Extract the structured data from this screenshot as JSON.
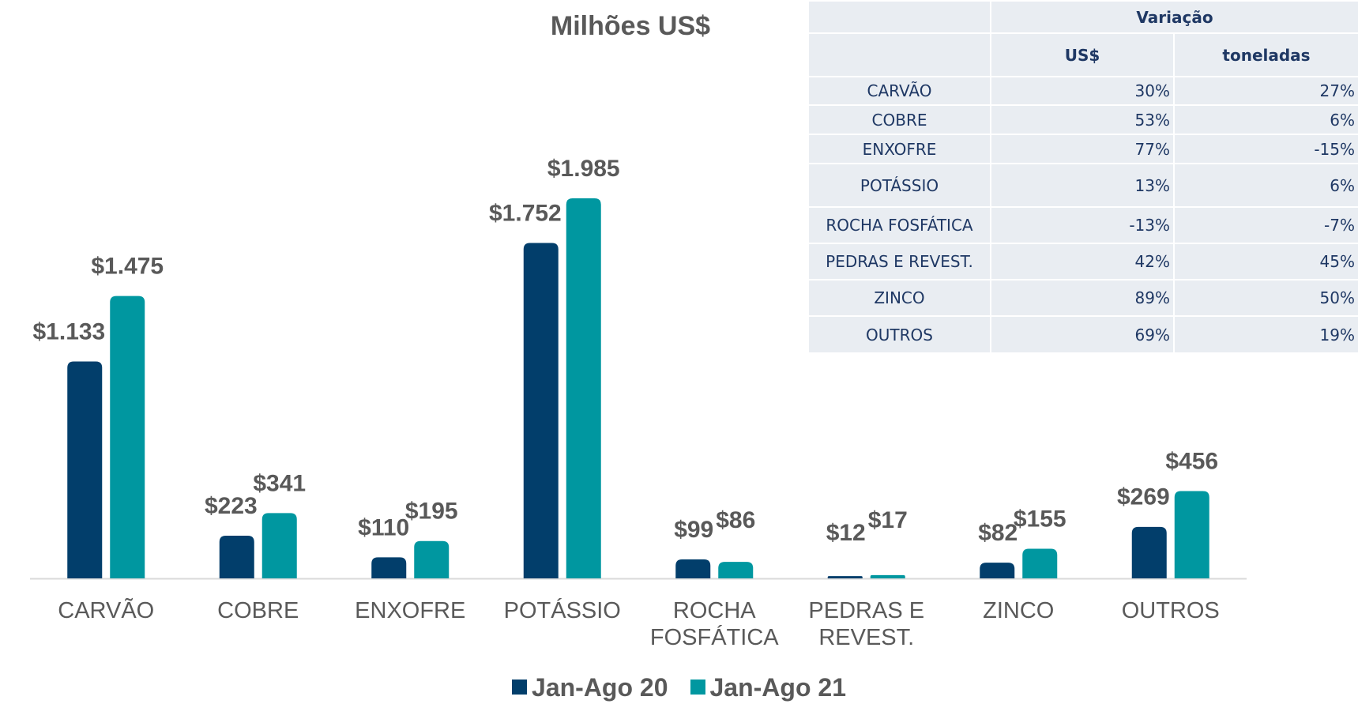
{
  "chart_data": {
    "type": "bar",
    "title": "Milhões US$",
    "categories": [
      "CARVÃO",
      "COBRE",
      "ENXOFRE",
      "POTÁSSIO",
      "ROCHA FOSFÁTICA",
      "PEDRAS E REVEST.",
      "ZINCO",
      "OUTROS"
    ],
    "series": [
      {
        "name": "Jan-Ago 20",
        "color": "#023e6b",
        "values": [
          1133,
          223,
          110,
          1752,
          99,
          12,
          82,
          269
        ],
        "value_labels": [
          "$1.133",
          "$223",
          "$110",
          "$1.752",
          "$99",
          "$12",
          "$82",
          "$269"
        ]
      },
      {
        "name": "Jan-Ago 21",
        "color": "#0097a0",
        "values": [
          1475,
          341,
          195,
          1985,
          86,
          17,
          155,
          456
        ],
        "value_labels": [
          "$1.475",
          "$341",
          "$195",
          "$1.985",
          "$86",
          "$17",
          "$155",
          "$456"
        ]
      }
    ],
    "legend": "bottom"
  },
  "table": {
    "header": "Variação",
    "columns": [
      "US$",
      "toneladas"
    ],
    "rows": [
      [
        "CARVÃO",
        "30%",
        "27%"
      ],
      [
        "COBRE",
        "53%",
        "6%"
      ],
      [
        "ENXOFRE",
        "77%",
        "-15%"
      ],
      [
        "POTÁSSIO",
        "13%",
        "6%"
      ],
      [
        "ROCHA FOSFÁTICA",
        "-13%",
        "-7%"
      ],
      [
        "PEDRAS E REVEST.",
        "42%",
        "45%"
      ],
      [
        "ZINCO",
        "89%",
        "50%"
      ],
      [
        "OUTROS",
        "69%",
        "19%"
      ]
    ]
  }
}
